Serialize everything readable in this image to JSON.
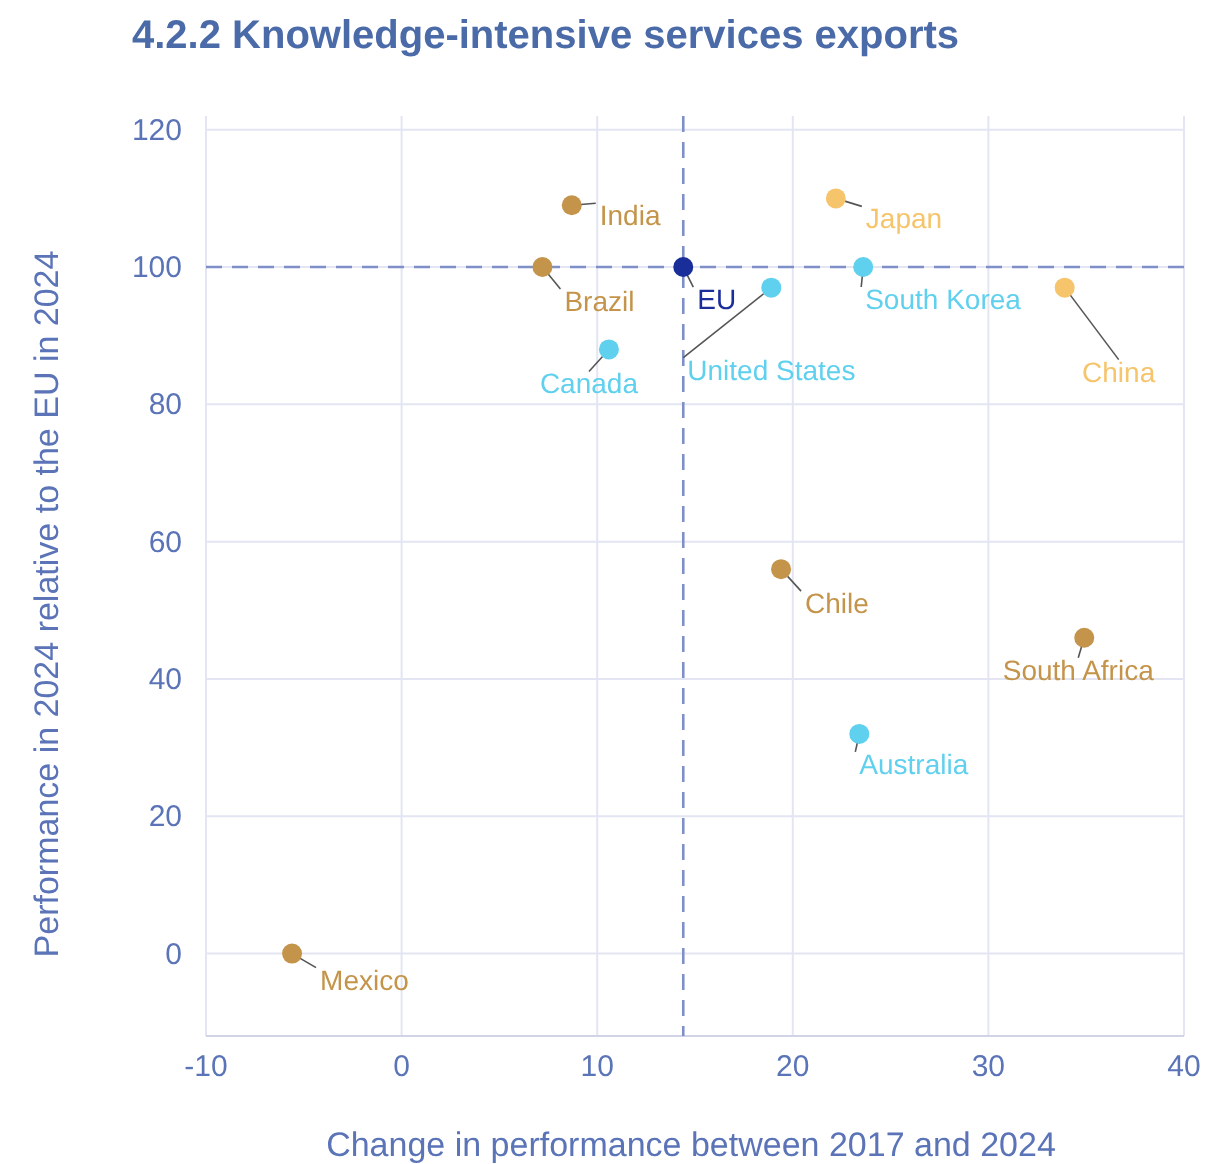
{
  "chart_data": {
    "type": "scatter",
    "title": "4.2.2 Knowledge-intensive services exports",
    "xlabel": "Change in performance between 2017 and 2024",
    "ylabel": "Performance in 2024 relative to the EU in 2024",
    "xlim": [
      -10,
      40
    ],
    "xticks": [
      -10,
      0,
      10,
      20,
      30,
      40
    ],
    "ylim": [
      -12,
      122
    ],
    "yticks": [
      0,
      20,
      40,
      60,
      80,
      100,
      120
    ],
    "grid": true,
    "marker": "circle",
    "ref_lines": [
      {
        "axis": "x",
        "value": 14.4,
        "color": "#7f8fc8",
        "line_style": "dashed"
      },
      {
        "axis": "y",
        "value": 100,
        "color": "#7f8fc8",
        "line_style": "dashed"
      }
    ],
    "series": [
      {
        "name": "India",
        "color": "#c4944a",
        "x": [
          8.7
        ],
        "values": [
          109
        ]
      },
      {
        "name": "Brazil",
        "color": "#c4944a",
        "x": [
          7.2
        ],
        "values": [
          100
        ]
      },
      {
        "name": "Canada",
        "color": "#5fd0ee",
        "x": [
          10.6
        ],
        "values": [
          88
        ]
      },
      {
        "name": "EU",
        "color": "#1a2e9a",
        "x": [
          14.4
        ],
        "values": [
          100
        ]
      },
      {
        "name": "Japan",
        "color": "#f5c46b",
        "x": [
          22.2
        ],
        "values": [
          110
        ]
      },
      {
        "name": "United States",
        "color": "#5fd0ee",
        "x": [
          18.9
        ],
        "values": [
          97
        ]
      },
      {
        "name": "South Korea",
        "color": "#5fd0ee",
        "x": [
          23.6
        ],
        "values": [
          100
        ]
      },
      {
        "name": "China",
        "color": "#f5c46b",
        "x": [
          33.9
        ],
        "values": [
          97
        ]
      },
      {
        "name": "Chile",
        "color": "#c4944a",
        "x": [
          19.4
        ],
        "values": [
          56
        ]
      },
      {
        "name": "South Africa",
        "color": "#c4944a",
        "x": [
          34.9
        ],
        "values": [
          46
        ]
      },
      {
        "name": "Australia",
        "color": "#5fd0ee",
        "x": [
          23.4
        ],
        "values": [
          32
        ]
      },
      {
        "name": "Mexico",
        "color": "#c4944a",
        "x": [
          -5.6
        ],
        "values": [
          0
        ]
      }
    ]
  }
}
